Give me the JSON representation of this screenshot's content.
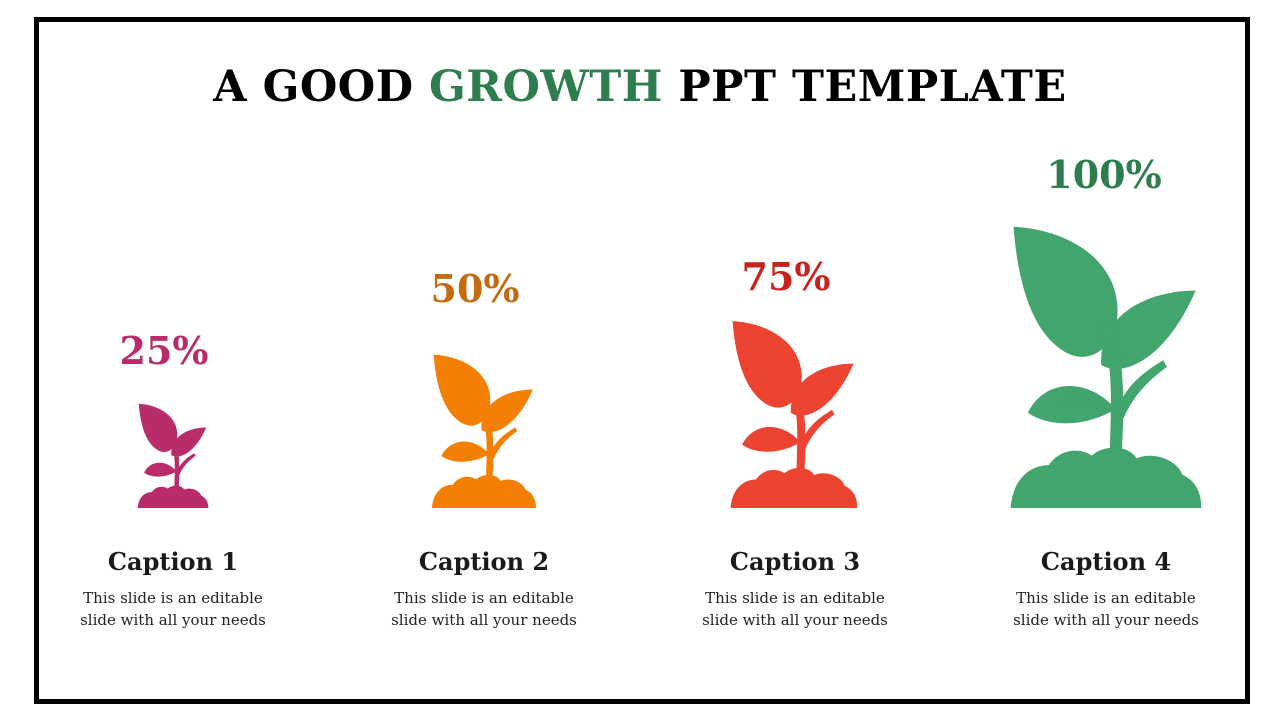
{
  "slide": {
    "title_pre": "A GOOD ",
    "title_highlight": "GROWTH",
    "title_post": " PPT TEMPLATE"
  },
  "colors": {
    "highlight": "#2e7d4f",
    "plant_1": "#b82c6a",
    "plant_2": "#f47f05",
    "plant_3": "#ec4431",
    "plant_4": "#41a56d",
    "pct_1": "#b82c6a",
    "pct_2": "#c46a10",
    "pct_3": "#c8221e",
    "pct_4": "#2e7d4f"
  },
  "items": [
    {
      "percent": "25%",
      "caption": "Caption 1",
      "line1": "This slide is an editable",
      "line2": "slide with all your needs",
      "icon": "sprout-icon"
    },
    {
      "percent": "50%",
      "caption": "Caption 2",
      "line1": "This slide is an editable",
      "line2": "slide with all your needs",
      "icon": "sprout-icon"
    },
    {
      "percent": "75%",
      "caption": "Caption 3",
      "line1": "This slide is an editable",
      "line2": "slide with all your needs",
      "icon": "sprout-icon"
    },
    {
      "percent": "100%",
      "caption": "Caption 4",
      "line1": "This slide is an editable",
      "line2": "slide with all your needs",
      "icon": "sprout-icon"
    }
  ]
}
